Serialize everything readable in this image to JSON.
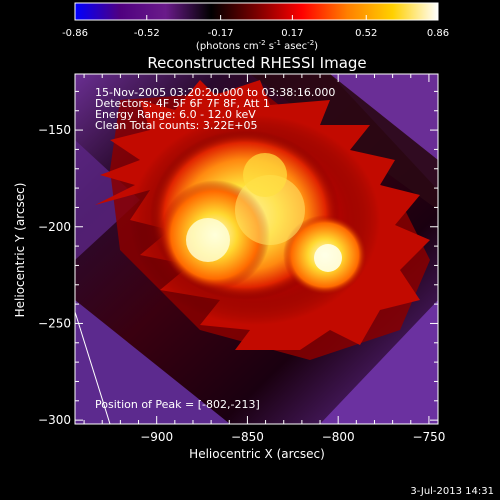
{
  "colorbar": {
    "ticks": [
      "-0.86",
      "-0.52",
      "-0.17",
      "0.17",
      "0.52",
      "0.86"
    ],
    "units_prefix": "(photons cm",
    "units_e1": "-2",
    "units_mid": " s",
    "units_e2": "-1",
    "units_mid2": " asec",
    "units_e3": "-2",
    "units_suffix": ")"
  },
  "plot": {
    "title": "Reconstructed RHESSI Image",
    "info_lines": [
      "15-Nov-2005 03:20:20.000 to 03:38:16.000",
      "Detectors: 4F 5F 6F 7F 8F, Att 1",
      "Energy Range: 6.0 - 12.0 keV",
      "Clean    Total counts: 3.22E+05"
    ],
    "peak_label": "Position of Peak = [-802,-213]",
    "footer_date": "3-Jul-2013 14:31"
  },
  "chart_data": {
    "type": "heatmap",
    "title": "Reconstructed RHESSI Image",
    "xlabel": "Heliocentric X (arcsec)",
    "ylabel": "Heliocentric Y (arcsec)",
    "xlim": [
      -945,
      -745
    ],
    "ylim": [
      -302,
      -121
    ],
    "x_ticks": [
      -900,
      -850,
      -800,
      -750
    ],
    "y_ticks": [
      -150,
      -200,
      -250,
      -300
    ],
    "colorbar_range": [
      -0.86,
      0.86
    ],
    "peak": [
      -802,
      -213
    ],
    "colormap": [
      "#0000ff",
      "#500080",
      "#6a1b8a",
      "#000000",
      "#7a0000",
      "#ff0000",
      "#ff7f00",
      "#ffd000",
      "#ffffff"
    ]
  }
}
